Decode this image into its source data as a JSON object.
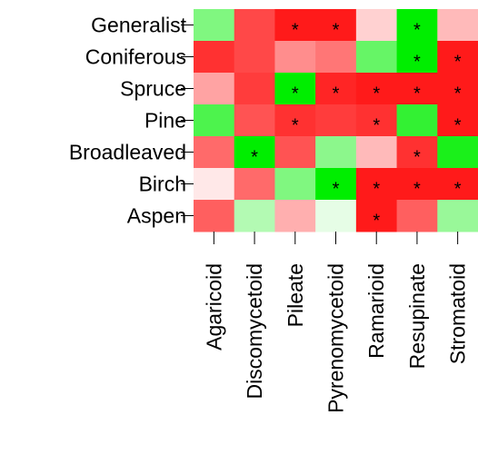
{
  "chart_data": {
    "type": "heatmap",
    "rows": [
      "Generalist",
      "Coniferous",
      "Spruce",
      "Pine",
      "Broadleaved",
      "Birch",
      "Aspen"
    ],
    "columns": [
      "Agaricoid",
      "Discomycetoid",
      "Pileate",
      "Pyrenomycetoid",
      "Ramarioid",
      "Resupinate",
      "Stromatoid"
    ],
    "values": [
      [
        0.5,
        -0.8,
        -1,
        -1,
        -0.2,
        1,
        -0.3
      ],
      [
        -0.9,
        -0.8,
        -0.5,
        -0.6,
        0.6,
        1,
        -1
      ],
      [
        -0.4,
        -0.85,
        1,
        -0.95,
        -1,
        -1,
        -1
      ],
      [
        0.7,
        -0.75,
        -0.9,
        -0.85,
        -0.9,
        0.8,
        -1
      ],
      [
        -0.65,
        1,
        -0.75,
        0.45,
        -0.3,
        -0.9,
        0.9
      ],
      [
        -0.1,
        -0.65,
        0.5,
        1,
        -1,
        -1,
        -1
      ],
      [
        -0.7,
        0.3,
        -0.35,
        0.1,
        -1,
        -0.7,
        0.4
      ]
    ],
    "vlim": [
      -1,
      1
    ],
    "low_color": "#ff1a1a",
    "high_color": "#00ee00",
    "marker": "*",
    "significant": [
      [
        false,
        false,
        true,
        true,
        false,
        true,
        false
      ],
      [
        false,
        false,
        false,
        false,
        false,
        true,
        true
      ],
      [
        false,
        false,
        true,
        true,
        true,
        true,
        true
      ],
      [
        false,
        false,
        true,
        false,
        true,
        false,
        true
      ],
      [
        false,
        true,
        false,
        false,
        false,
        true,
        false
      ],
      [
        false,
        false,
        false,
        true,
        true,
        true,
        true
      ],
      [
        false,
        false,
        false,
        false,
        true,
        false,
        false
      ]
    ]
  }
}
